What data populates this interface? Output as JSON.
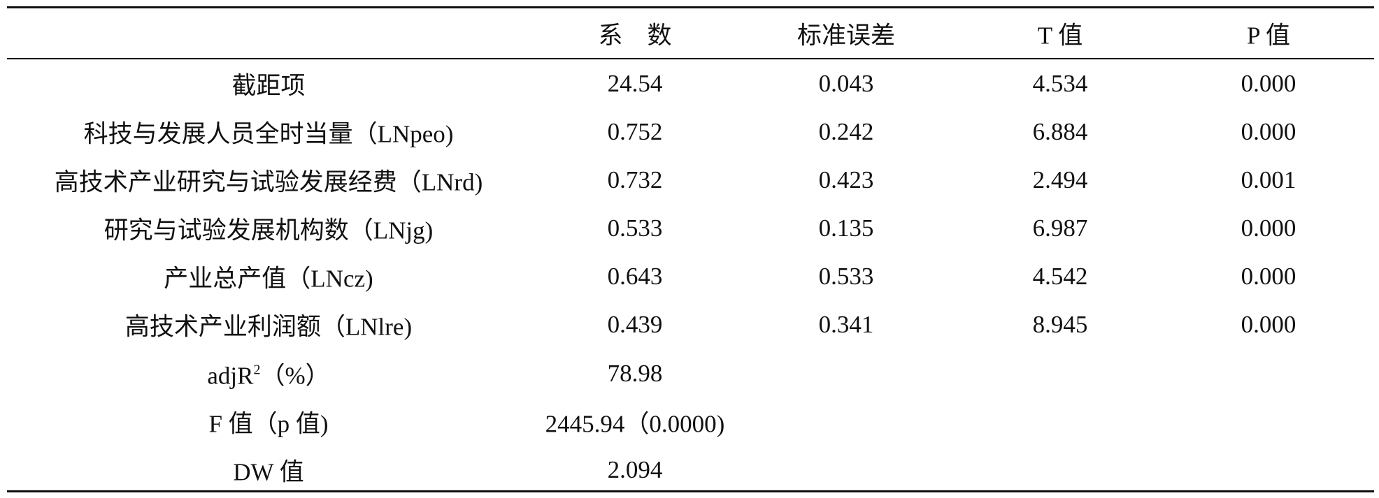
{
  "table": {
    "header": [
      "系　数",
      "标准误差",
      "T 值",
      "P 值"
    ],
    "rows": [
      {
        "label": "截距项",
        "cells": [
          "24.54",
          "0.043",
          "4.534",
          "0.000"
        ]
      },
      {
        "label": "科技与发展人员全时当量（LNpeo)",
        "cells": [
          "0.752",
          "0.242",
          "6.884",
          "0.000"
        ]
      },
      {
        "label": "高技术产业研究与试验发展经费（LNrd)",
        "cells": [
          "0.732",
          "0.423",
          "2.494",
          "0.001"
        ]
      },
      {
        "label": "研究与试验发展机构数（LNjg)",
        "cells": [
          "0.533",
          "0.135",
          "6.987",
          "0.000"
        ]
      },
      {
        "label": "产业总产值（LNcz)",
        "cells": [
          "0.643",
          "0.533",
          "4.542",
          "0.000"
        ]
      },
      {
        "label": "高技术产业利润额（LNlre)",
        "cells": [
          "0.439",
          "0.341",
          "8.945",
          "0.000"
        ]
      },
      {
        "label": "adjR",
        "sup": "2",
        "suffix": "（%）",
        "cells": [
          "78.98"
        ]
      },
      {
        "label": "F 值（p 值)",
        "cells": [
          "2445.94（0.0000)"
        ]
      },
      {
        "label": "DW 值",
        "cells": [
          "2.094"
        ]
      }
    ]
  }
}
